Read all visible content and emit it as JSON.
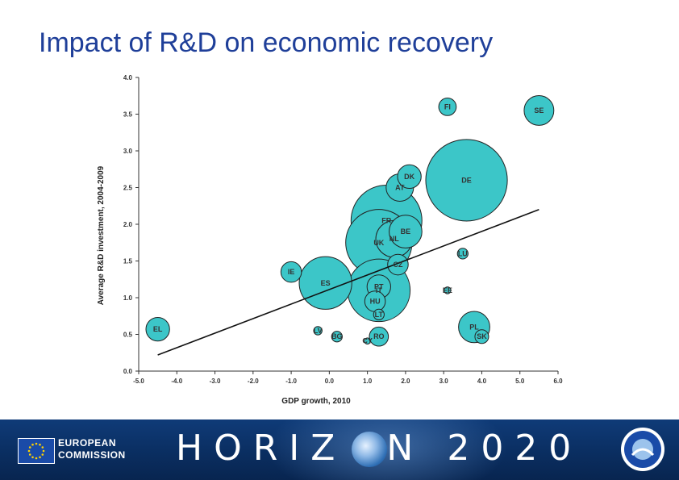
{
  "title": "Impact of R&D on economic recovery",
  "chart_data": {
    "type": "scatter",
    "xlabel": "GDP growth, 2010",
    "ylabel": "Average R&D investment, 2004-2009",
    "xlim": [
      -5.0,
      6.0
    ],
    "ylim": [
      0.0,
      4.0
    ],
    "xticks": [
      "-5.0",
      "-4.0",
      "-3.0",
      "-2.0",
      "-1.0",
      "0.0",
      "1.0",
      "2.0",
      "3.0",
      "4.0",
      "5.0",
      "6.0"
    ],
    "yticks": [
      "0.0",
      "0.5",
      "1.0",
      "1.5",
      "2.0",
      "2.5",
      "3.0",
      "3.5",
      "4.0"
    ],
    "grid": false,
    "bubble_color": "#3cc6c8",
    "points": [
      {
        "label": "SE",
        "x": 5.5,
        "y": 3.55,
        "size": 0.39
      },
      {
        "label": "FI",
        "x": 3.1,
        "y": 3.6,
        "size": 0.23
      },
      {
        "label": "DK",
        "x": 2.1,
        "y": 2.65,
        "size": 0.31
      },
      {
        "label": "DE",
        "x": 3.6,
        "y": 2.6,
        "size": 1.07
      },
      {
        "label": "AT",
        "x": 1.85,
        "y": 2.5,
        "size": 0.36
      },
      {
        "label": "FR",
        "x": 1.5,
        "y": 2.05,
        "size": 0.93
      },
      {
        "label": "BE",
        "x": 2.0,
        "y": 1.9,
        "size": 0.43
      },
      {
        "label": "NL",
        "x": 1.7,
        "y": 1.8,
        "size": 0.48
      },
      {
        "label": "UK",
        "x": 1.3,
        "y": 1.75,
        "size": 0.87
      },
      {
        "label": "LU",
        "x": 3.5,
        "y": 1.6,
        "size": 0.14
      },
      {
        "label": "CZ",
        "x": 1.8,
        "y": 1.45,
        "size": 0.27
      },
      {
        "label": "IE",
        "x": -1.0,
        "y": 1.35,
        "size": 0.27
      },
      {
        "label": "ES",
        "x": -0.1,
        "y": 1.2,
        "size": 0.69
      },
      {
        "label": "IT",
        "x": 1.3,
        "y": 1.1,
        "size": 0.82
      },
      {
        "label": "PT",
        "x": 1.3,
        "y": 1.15,
        "size": 0.31
      },
      {
        "label": "EE",
        "x": 3.1,
        "y": 1.1,
        "size": 0.09
      },
      {
        "label": "HU",
        "x": 1.2,
        "y": 0.95,
        "size": 0.27
      },
      {
        "label": "PL",
        "x": 3.8,
        "y": 0.6,
        "size": 0.41
      },
      {
        "label": "SK",
        "x": 4.0,
        "y": 0.47,
        "size": 0.18
      },
      {
        "label": "EL",
        "x": -4.5,
        "y": 0.57,
        "size": 0.31
      },
      {
        "label": "LV",
        "x": -0.3,
        "y": 0.55,
        "size": 0.11
      },
      {
        "label": "BG",
        "x": 0.2,
        "y": 0.47,
        "size": 0.14
      },
      {
        "label": "CY",
        "x": 1.0,
        "y": 0.41,
        "size": 0.08
      },
      {
        "label": "RO",
        "x": 1.3,
        "y": 0.47,
        "size": 0.25
      },
      {
        "label": "LT",
        "x": 1.3,
        "y": 0.77,
        "size": 0.14
      }
    ],
    "trendline": {
      "x1": -4.5,
      "y1": 0.22,
      "x2": 5.5,
      "y2": 2.2
    }
  },
  "footer": {
    "eu_line1": "EUROPEAN",
    "eu_line2": "COMMISSION",
    "horizon_left": "HORIZ",
    "horizon_right": "N 2020",
    "flag_color": "#1a4ba8",
    "star_color": "#ffd200",
    "icons": {
      "flag": "eu-flag-icon",
      "globe": "globe-icon",
      "badge": "innovation-union-icon"
    }
  }
}
